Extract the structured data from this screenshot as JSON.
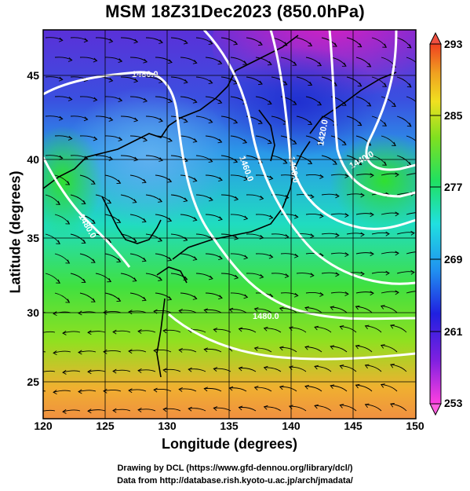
{
  "title": "MSM 18Z31Dec2023 (850.0hPa)",
  "axes": {
    "xlabel": "Longitude (degrees)",
    "ylabel": "Latitude  (degrees)",
    "xticks": [
      "120",
      "125",
      "130",
      "135",
      "140",
      "145",
      "150"
    ],
    "yticks": [
      "45",
      "40",
      "35",
      "30",
      "25"
    ]
  },
  "colorbar": {
    "ticks": [
      "293",
      "285",
      "277",
      "269",
      "261",
      "253"
    ]
  },
  "contour_labels": [
    "1480.0",
    "1460.0",
    "1480.0",
    "1460.0",
    "1420.0",
    "1440.0",
    "1480.0"
  ],
  "credits": {
    "line1": "Drawing by DCL (https://www.gfd-dennou.org/library/dcl/)",
    "line2": "Data from http://database.rish.kyoto-u.ac.jp/arch/jmadata/"
  },
  "colors": {
    "warm": "#f08030",
    "green": "#40d820",
    "cyan": "#20d8d8",
    "blue": "#2040e0",
    "magenta": "#e020c0"
  }
}
